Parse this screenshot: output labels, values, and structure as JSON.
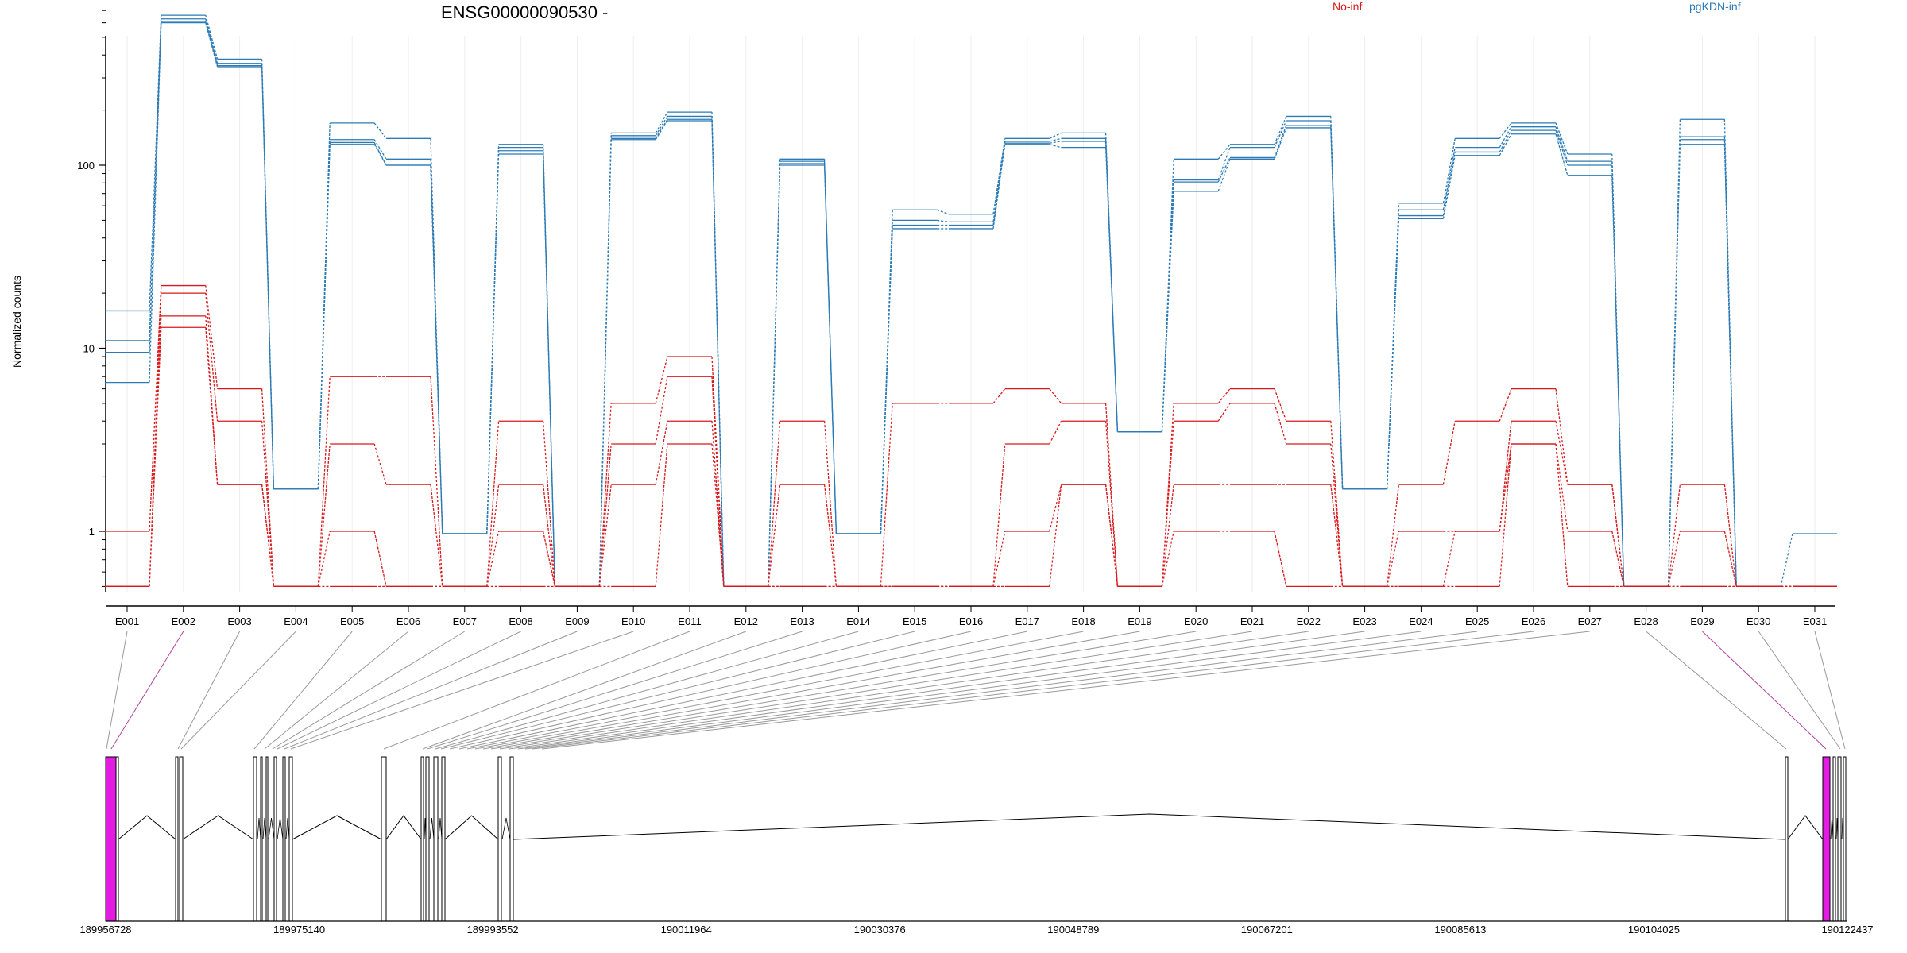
{
  "chart_data": {
    "type": "line",
    "title": "ENSG00000090530 -",
    "ylabel": "Normalized counts",
    "yscale": "log",
    "yticks": [
      "1",
      "10",
      "100"
    ],
    "ylim": [
      0.5,
      750
    ],
    "legend": [
      {
        "label": "No-inf",
        "color": "#d7191c"
      },
      {
        "label": "pgKDN-inf",
        "color": "#2c7bb6"
      }
    ],
    "categories": [
      "E001",
      "E002",
      "E003",
      "E004",
      "E005",
      "E006",
      "E007",
      "E008",
      "E009",
      "E010",
      "E011",
      "E012",
      "E013",
      "E014",
      "E015",
      "E016",
      "E017",
      "E018",
      "E019",
      "E020",
      "E021",
      "E022",
      "E023",
      "E024",
      "E025",
      "E026",
      "E027",
      "E028",
      "E029",
      "E030",
      "E031"
    ],
    "series": [
      {
        "group": "pgKDN-inf",
        "color": "#2c7bb6",
        "values": [
          16,
          660,
          380,
          1.7,
          170,
          140,
          0.97,
          130,
          0.5,
          150,
          195,
          0.5,
          108,
          0.97,
          57,
          54,
          140,
          150,
          3.5,
          108,
          130,
          185,
          1.7,
          62,
          140,
          170,
          115,
          0.5,
          178,
          0.5,
          0.97
        ]
      },
      {
        "group": "pgKDN-inf",
        "color": "#2c7bb6",
        "values": [
          11,
          630,
          360,
          1.7,
          138,
          108,
          0.97,
          125,
          0.5,
          145,
          185,
          0.5,
          105,
          0.97,
          50,
          49,
          135,
          140,
          3.5,
          83,
          125,
          175,
          1.7,
          57,
          125,
          162,
          105,
          0.5,
          143,
          0.5,
          0.5
        ]
      },
      {
        "group": "pgKDN-inf",
        "color": "#2c7bb6",
        "values": [
          9.5,
          610,
          350,
          1.7,
          133,
          100,
          0.97,
          120,
          0.5,
          140,
          178,
          0.5,
          102,
          0.97,
          47,
          47,
          132,
          135,
          3.5,
          81,
          110,
          165,
          1.7,
          53,
          118,
          155,
          100,
          0.5,
          138,
          0.5,
          0.5
        ]
      },
      {
        "group": "pgKDN-inf",
        "color": "#2c7bb6",
        "values": [
          6.5,
          600,
          345,
          1.7,
          130,
          100,
          0.97,
          115,
          0.5,
          138,
          175,
          0.5,
          100,
          0.97,
          45,
          45,
          130,
          125,
          3.5,
          72,
          108,
          160,
          1.7,
          51,
          113,
          148,
          88,
          0.5,
          130,
          0.5,
          0.5
        ]
      },
      {
        "group": "No-inf",
        "color": "#d7191c",
        "values": [
          1,
          22,
          6,
          0.5,
          7,
          7,
          0.5,
          4,
          0.5,
          5,
          9,
          0.5,
          4,
          0.5,
          5,
          5,
          6,
          5,
          0.5,
          5,
          6,
          4,
          0.5,
          1.8,
          4,
          6,
          1.8,
          0.5,
          1.8,
          0.5,
          0.5
        ]
      },
      {
        "group": "No-inf",
        "color": "#d7191c",
        "values": [
          0.5,
          20,
          4,
          0.5,
          3,
          1.8,
          0.5,
          1.8,
          0.5,
          3,
          7,
          0.5,
          1.8,
          0.5,
          0.5,
          0.5,
          3,
          4,
          0.5,
          4,
          5,
          3,
          0.5,
          1,
          1,
          4,
          1.8,
          0.5,
          1,
          0.5,
          0.5
        ]
      },
      {
        "group": "No-inf",
        "color": "#d7191c",
        "values": [
          0.5,
          15,
          1.8,
          0.5,
          1,
          0.5,
          0.5,
          1,
          0.5,
          1.8,
          4,
          0.5,
          0.5,
          0.5,
          0.5,
          0.5,
          1,
          1.8,
          0.5,
          1.8,
          1.8,
          1.8,
          0.5,
          0.5,
          1,
          3,
          1,
          0.5,
          0.5,
          0.5,
          0.5
        ]
      },
      {
        "group": "No-inf",
        "color": "#d7191c",
        "values": [
          0.5,
          13,
          1.8,
          0.5,
          0.5,
          0.5,
          0.5,
          0.5,
          0.5,
          0.5,
          3,
          0.5,
          0.5,
          0.5,
          0.5,
          0.5,
          0.5,
          1.8,
          0.5,
          1,
          1,
          0.5,
          0.5,
          0.5,
          0.5,
          3,
          0.5,
          0.5,
          0.5,
          0.5,
          0.5
        ]
      }
    ],
    "gene_model": {
      "genomic_ticks": [
        "189956728",
        "189975140",
        "189993552",
        "190011964",
        "190030376",
        "190048789",
        "190067201",
        "190085613",
        "190104025",
        "190122437"
      ],
      "genomic_range": [
        189956728,
        190122437
      ],
      "highlighted_exons": [
        "E002",
        "E029"
      ],
      "highlight_color": "#e31ce3"
    }
  }
}
